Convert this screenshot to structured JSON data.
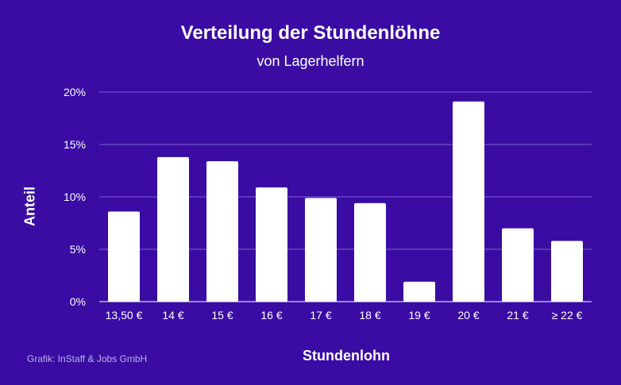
{
  "header": {
    "title": "Verteilung der Stundenlöhne",
    "subtitle": "von Lagerhelfern"
  },
  "footer": {
    "credit": "Grafik: InStaff & Jobs GmbH"
  },
  "colors": {
    "background": "#3a0ca3",
    "bar": "#ffffff",
    "grid": "#7a5fd0",
    "text": "#ffffff",
    "credit": "#b8b0f0"
  },
  "chart_data": {
    "type": "bar",
    "title": "Verteilung der Stundenlöhne",
    "subtitle": "von Lagerhelfern",
    "xlabel": "Stundenlohn",
    "ylabel": "Anteil",
    "categories": [
      "13,50 €",
      "14 €",
      "15 €",
      "16 €",
      "17 €",
      "18 €",
      "19 €",
      "20 €",
      "21 €",
      "≥ 22 €"
    ],
    "values": [
      8.6,
      13.8,
      13.4,
      10.9,
      9.9,
      9.4,
      1.9,
      19.1,
      7.0,
      5.8
    ],
    "unit": "%",
    "ylim": [
      0,
      20
    ],
    "yticks": [
      0,
      5,
      10,
      15,
      20
    ],
    "ytick_labels": [
      "0%",
      "5%",
      "10%",
      "15%",
      "20%"
    ],
    "grid": true,
    "legend": "none"
  }
}
